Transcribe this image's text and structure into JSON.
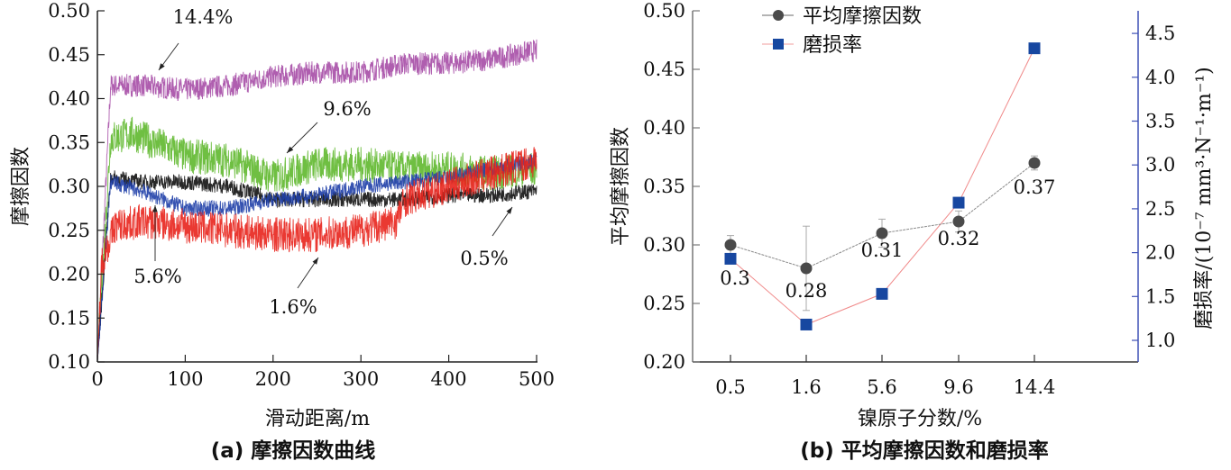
{
  "chart_data": [
    {
      "type": "line",
      "panel": "a",
      "title": "(a) 摩擦因数曲线",
      "xlabel": "滑动距离/m",
      "ylabel": "摩擦因数",
      "xlim": [
        0,
        500
      ],
      "ylim": [
        0.1,
        0.5
      ],
      "xticks": [
        "0",
        "100",
        "200",
        "300",
        "400",
        "500"
      ],
      "yticks": [
        "0.10",
        "0.15",
        "0.20",
        "0.25",
        "0.30",
        "0.35",
        "0.40",
        "0.45",
        "0.50"
      ],
      "grid": false,
      "series": [
        {
          "name": "14.4%",
          "color": "#a64ca6",
          "x": [
            0,
            15,
            50,
            100,
            150,
            200,
            250,
            300,
            350,
            400,
            450,
            500
          ],
          "y": [
            0.1,
            0.415,
            0.415,
            0.41,
            0.415,
            0.425,
            0.43,
            0.43,
            0.44,
            0.44,
            0.445,
            0.455
          ]
        },
        {
          "name": "9.6%",
          "color": "#5fb82e",
          "x": [
            0,
            15,
            40,
            100,
            150,
            200,
            250,
            300,
            350,
            400,
            450,
            500
          ],
          "y": [
            0.1,
            0.355,
            0.36,
            0.335,
            0.33,
            0.31,
            0.325,
            0.325,
            0.32,
            0.32,
            0.315,
            0.32
          ]
        },
        {
          "name": "0.5%",
          "color": "#111111",
          "x": [
            0,
            15,
            50,
            100,
            150,
            200,
            250,
            300,
            350,
            400,
            450,
            500
          ],
          "y": [
            0.1,
            0.31,
            0.305,
            0.305,
            0.3,
            0.285,
            0.285,
            0.285,
            0.285,
            0.29,
            0.29,
            0.295
          ]
        },
        {
          "name": "5.6%",
          "color": "#1f3fa8",
          "x": [
            0,
            15,
            50,
            100,
            150,
            200,
            250,
            300,
            350,
            400,
            450,
            500
          ],
          "y": [
            0.1,
            0.305,
            0.295,
            0.275,
            0.275,
            0.285,
            0.29,
            0.3,
            0.305,
            0.31,
            0.32,
            0.33
          ]
        },
        {
          "name": "1.6%",
          "color": "#e8231c",
          "x": [
            0,
            5,
            20,
            50,
            100,
            150,
            200,
            250,
            300,
            340,
            350,
            400,
            450,
            500
          ],
          "y": [
            0.1,
            0.215,
            0.255,
            0.26,
            0.255,
            0.25,
            0.245,
            0.245,
            0.25,
            0.26,
            0.285,
            0.3,
            0.315,
            0.33
          ]
        }
      ],
      "annotations": [
        {
          "text": "14.4%",
          "target_series": "14.4%"
        },
        {
          "text": "9.6%",
          "target_series": "9.6%"
        },
        {
          "text": "5.6%",
          "target_series": "5.6%"
        },
        {
          "text": "1.6%",
          "target_series": "1.6%"
        },
        {
          "text": "0.5%",
          "target_series": "0.5%"
        }
      ]
    },
    {
      "type": "line",
      "panel": "b",
      "title": "(b) 平均摩擦因数和磨损率",
      "xlabel": "镍原子分数/%",
      "ylabel": "平均摩擦因数",
      "y2label": "磨损率/(10⁻⁷ mm³·N⁻¹·m⁻¹)",
      "categories": [
        "0.5",
        "1.6",
        "5.6",
        "9.6",
        "14.4"
      ],
      "ylim": [
        0.2,
        0.5
      ],
      "y2lim": [
        0.85,
        4.85
      ],
      "yticks": [
        "0.20",
        "0.25",
        "0.30",
        "0.35",
        "0.40",
        "0.45",
        "0.50"
      ],
      "y2ticks": [
        "1.0",
        "1.5",
        "2.0",
        "2.5",
        "3.0",
        "3.5",
        "4.0",
        "4.5"
      ],
      "legend": "top-left",
      "grid": false,
      "series": [
        {
          "name": "平均摩擦因数",
          "axis": "left",
          "marker": "circle",
          "color": "#4a4a4a",
          "line_color": "#8a8a8a",
          "values": [
            0.3,
            0.28,
            0.31,
            0.32,
            0.37
          ],
          "errors": [
            0.008,
            0.036,
            0.012,
            0.009,
            0.006
          ],
          "labels": [
            "0.3",
            "0.28",
            "0.31",
            "0.32",
            "0.37"
          ]
        },
        {
          "name": "磨损率",
          "axis": "right",
          "marker": "square",
          "color": "#1747a0",
          "line_color": "#f08a8a",
          "values": [
            1.93,
            1.18,
            1.53,
            2.57,
            4.33
          ]
        }
      ]
    }
  ]
}
